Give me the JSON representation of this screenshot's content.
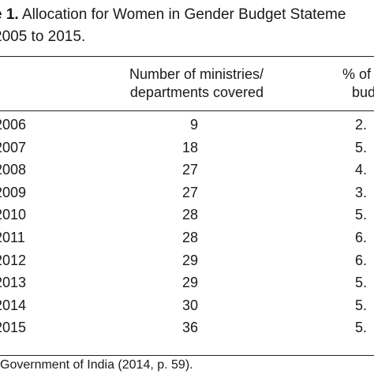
{
  "caption": {
    "lead": "e 1.",
    "title": "Allocation for Women in Gender Budget Stateme",
    "line2": "2005 to 2015."
  },
  "headers": {
    "ministries_line1": "Number of ministries/",
    "ministries_line2": "departments covered",
    "pct_line1": "% of",
    "pct_line2": "bud"
  },
  "rows": [
    {
      "year": "2006",
      "count": "9",
      "pct": "2."
    },
    {
      "year": "2007",
      "count": "18",
      "pct": "5."
    },
    {
      "year": "2008",
      "count": "27",
      "pct": "4."
    },
    {
      "year": "2009",
      "count": "27",
      "pct": "3."
    },
    {
      "year": "2010",
      "count": "28",
      "pct": "5."
    },
    {
      "year": "2011",
      "count": "28",
      "pct": "6."
    },
    {
      "year": "2012",
      "count": "29",
      "pct": "6."
    },
    {
      "year": "2013",
      "count": "29",
      "pct": "5."
    },
    {
      "year": "2014",
      "count": "30",
      "pct": "5."
    },
    {
      "year": "2015",
      "count": "36",
      "pct": "5."
    }
  ],
  "source": "Government of India (2014, p. 59)."
}
